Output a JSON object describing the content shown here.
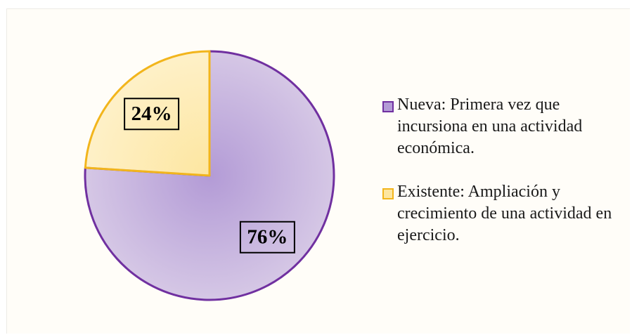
{
  "chart_data": {
    "type": "pie",
    "categories": [
      "Nueva: Primera vez que incursiona en una actividad económica.",
      "Existente: Ampliación y crecimiento de una actividad en ejercicio."
    ],
    "values": [
      76,
      24
    ],
    "value_labels": [
      "76%",
      "24%"
    ],
    "colors": [
      "#b39bd6",
      "#fde6a0"
    ],
    "edge_colors": [
      "#7030a0",
      "#f2b51c"
    ],
    "legend": "right"
  }
}
